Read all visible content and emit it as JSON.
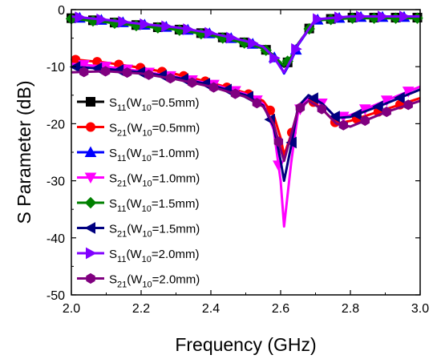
{
  "chart_data": {
    "type": "line",
    "title": "",
    "xlabel": "Frequency (GHz)",
    "ylabel": "S Parameter (dB)",
    "xlim": [
      2.0,
      3.0
    ],
    "ylim": [
      -50,
      0
    ],
    "xticks": [
      2.0,
      2.2,
      2.4,
      2.6,
      2.8,
      3.0
    ],
    "xtick_labels": [
      "2.0",
      "2.2",
      "2.4",
      "2.6",
      "2.8",
      "3.0"
    ],
    "yticks": [
      0,
      -10,
      -20,
      -30,
      -40,
      -50
    ],
    "ytick_labels": [
      "0",
      "-10",
      "-20",
      "-30",
      "-40",
      "-50"
    ],
    "grid": false,
    "legend_position": "left-middle",
    "series": [
      {
        "name": "S11(W10=0.5mm)",
        "label_main": "S",
        "label_sub": "11",
        "label_paren": "(W",
        "label_paren_sub": "10",
        "label_rest": "=0.5mm)",
        "color": "#000000",
        "marker": "square",
        "x": [
          2.0,
          2.1,
          2.2,
          2.3,
          2.4,
          2.5,
          2.55,
          2.58,
          2.6,
          2.61,
          2.63,
          2.65,
          2.7,
          2.8,
          2.9,
          3.0
        ],
        "y": [
          -1.5,
          -2.1,
          -2.8,
          -3.4,
          -4.4,
          -5.8,
          -6.7,
          -8.0,
          -9.5,
          -10.0,
          -8.5,
          -6.0,
          -1.8,
          -1.4,
          -1.4,
          -1.4
        ]
      },
      {
        "name": "S21(W10=0.5mm)",
        "label_main": "S",
        "label_sub": "21",
        "label_paren": "(W",
        "label_paren_sub": "10",
        "label_rest": "=0.5mm)",
        "color": "#ff0000",
        "marker": "circle",
        "x": [
          2.0,
          2.1,
          2.2,
          2.3,
          2.4,
          2.5,
          2.55,
          2.58,
          2.6,
          2.61,
          2.63,
          2.65,
          2.68,
          2.72,
          2.76,
          2.8,
          2.9,
          3.0
        ],
        "y": [
          -8.7,
          -9.3,
          -10.2,
          -11.3,
          -12.8,
          -14.6,
          -16.0,
          -18.5,
          -22.5,
          -25.5,
          -22.0,
          -17.5,
          -15.5,
          -17.5,
          -20.0,
          -19.5,
          -17.5,
          -15.5
        ]
      },
      {
        "name": "S11(W10=1.0mm)",
        "label_main": "S",
        "label_sub": "11",
        "label_paren": "(W",
        "label_paren_sub": "10",
        "label_rest": "=1.0mm)",
        "color": "#0000ff",
        "marker": "triangle-up",
        "x": [
          2.0,
          2.1,
          2.2,
          2.3,
          2.4,
          2.5,
          2.55,
          2.58,
          2.6,
          2.61,
          2.63,
          2.65,
          2.7,
          2.8,
          2.9,
          3.0
        ],
        "y": [
          -1.3,
          -1.9,
          -2.6,
          -3.2,
          -4.2,
          -5.6,
          -6.6,
          -8.2,
          -10.0,
          -11.2,
          -9.0,
          -6.2,
          -1.8,
          -1.3,
          -1.3,
          -1.3
        ]
      },
      {
        "name": "S21(W10=1.0mm)",
        "label_main": "S",
        "label_sub": "21",
        "label_paren": "(W",
        "label_paren_sub": "10",
        "label_rest": "=1.0mm)",
        "color": "#ff00ff",
        "marker": "triangle-down",
        "x": [
          2.0,
          2.1,
          2.2,
          2.3,
          2.4,
          2.5,
          2.55,
          2.58,
          2.6,
          2.61,
          2.63,
          2.65,
          2.68,
          2.72,
          2.76,
          2.8,
          2.9,
          3.0
        ],
        "y": [
          -9.5,
          -10.0,
          -10.8,
          -11.8,
          -13.0,
          -14.8,
          -16.5,
          -21.0,
          -30.0,
          -38.0,
          -27.0,
          -18.0,
          -15.3,
          -16.5,
          -19.0,
          -18.5,
          -16.0,
          -13.5
        ]
      },
      {
        "name": "S11(W10=1.5mm)",
        "label_main": "S",
        "label_sub": "11",
        "label_paren": "(W",
        "label_paren_sub": "10",
        "label_rest": "=1.5mm)",
        "color": "#008000",
        "marker": "diamond",
        "x": [
          2.0,
          2.1,
          2.2,
          2.3,
          2.4,
          2.5,
          2.55,
          2.58,
          2.6,
          2.61,
          2.63,
          2.65,
          2.7,
          2.8,
          2.9,
          3.0
        ],
        "y": [
          -1.6,
          -2.2,
          -2.9,
          -3.5,
          -4.5,
          -5.9,
          -6.8,
          -8.0,
          -9.3,
          -9.8,
          -8.3,
          -6.0,
          -1.9,
          -1.5,
          -1.5,
          -1.5
        ]
      },
      {
        "name": "S21(W10=1.5mm)",
        "label_main": "S",
        "label_sub": "21",
        "label_paren": "(W",
        "label_paren_sub": "10",
        "label_rest": "=1.5mm)",
        "color": "#000080",
        "marker": "triangle-left",
        "x": [
          2.0,
          2.1,
          2.2,
          2.3,
          2.4,
          2.5,
          2.55,
          2.58,
          2.6,
          2.61,
          2.63,
          2.65,
          2.68,
          2.72,
          2.76,
          2.8,
          2.9,
          3.0
        ],
        "y": [
          -10.0,
          -10.4,
          -11.0,
          -11.9,
          -13.2,
          -15.0,
          -16.8,
          -20.5,
          -26.5,
          -30.0,
          -24.0,
          -17.0,
          -15.0,
          -16.5,
          -19.0,
          -18.8,
          -16.5,
          -14.0
        ]
      },
      {
        "name": "S11(W10=2.0mm)",
        "label_main": "S",
        "label_sub": "11",
        "label_paren": "(W",
        "label_paren_sub": "10",
        "label_rest": "=2.0mm)",
        "color": "#8000ff",
        "marker": "triangle-right",
        "x": [
          2.0,
          2.1,
          2.2,
          2.3,
          2.4,
          2.5,
          2.55,
          2.58,
          2.6,
          2.61,
          2.63,
          2.65,
          2.7,
          2.8,
          2.9,
          3.0
        ],
        "y": [
          -1.2,
          -1.8,
          -2.5,
          -3.1,
          -4.1,
          -5.5,
          -6.5,
          -8.3,
          -10.2,
          -11.0,
          -8.8,
          -6.1,
          -1.7,
          -1.2,
          -1.2,
          -1.2
        ]
      },
      {
        "name": "S21(W10=2.0mm)",
        "label_main": "S",
        "label_sub": "21",
        "label_paren": "(W",
        "label_paren_sub": "10",
        "label_rest": "=2.0mm)",
        "color": "#800080",
        "marker": "hexagon",
        "x": [
          2.0,
          2.1,
          2.2,
          2.3,
          2.4,
          2.5,
          2.55,
          2.58,
          2.6,
          2.61,
          2.63,
          2.65,
          2.68,
          2.72,
          2.76,
          2.8,
          2.9,
          3.0
        ],
        "y": [
          -11.0,
          -10.8,
          -11.2,
          -12.2,
          -13.5,
          -15.3,
          -17.0,
          -20.0,
          -24.5,
          -26.5,
          -22.0,
          -17.5,
          -16.0,
          -17.5,
          -20.0,
          -20.5,
          -18.0,
          -16.0
        ]
      }
    ]
  }
}
